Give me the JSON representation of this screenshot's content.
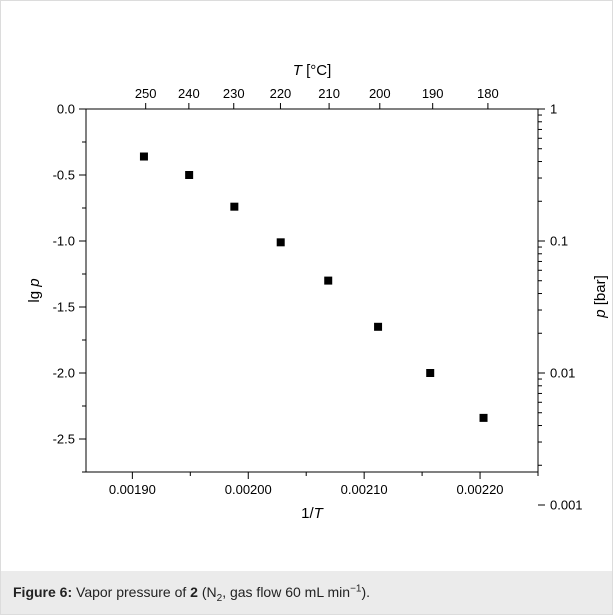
{
  "chart_data": {
    "type": "scatter",
    "xlabel": "1/T",
    "ylabel": "lg p",
    "top_xlabel": "T [°C]",
    "right_ylabel": "p [bar]",
    "xlim": [
      0.00186,
      0.00225
    ],
    "ylim": [
      -2.75,
      0.0
    ],
    "x_ticks": [
      0.0019,
      0.002,
      0.0021,
      0.0022
    ],
    "x_tick_labels": [
      "0.00190",
      "0.00200",
      "0.00210",
      "0.00220"
    ],
    "y_ticks": [
      0.0,
      -0.5,
      -1.0,
      -1.5,
      -2.0,
      -2.5
    ],
    "y_tick_labels": [
      "0.0",
      "-0.5",
      "-1.0",
      "-1.5",
      "-2.0",
      "-2.5"
    ],
    "top_ticks_T": [
      250,
      240,
      230,
      220,
      210,
      200,
      190,
      180
    ],
    "top_tick_labels": [
      "250",
      "240",
      "230",
      "220",
      "210",
      "200",
      "190",
      "180"
    ],
    "right_ticks_p": [
      1,
      0.1,
      0.01,
      0.001
    ],
    "right_tick_labels": [
      "1",
      "0.1",
      "0.01",
      "0.001"
    ],
    "grid": false,
    "marker": "square",
    "marker_color": "#000000",
    "x": [
      0.00191,
      0.001949,
      0.001988,
      0.002028,
      0.002069,
      0.002112,
      0.002157,
      0.002203
    ],
    "y": [
      -0.36,
      -0.5,
      -0.74,
      -1.01,
      -1.3,
      -1.65,
      -2.0,
      -2.34
    ]
  },
  "caption": {
    "label": "Figure 6:",
    "text_before_compound": " Vapor pressure of ",
    "compound": "2",
    "text_open": " (N",
    "sub_2": "2",
    "text_flow": ", gas flow 60 mL min",
    "sup_exp": "−1",
    "text_close": ")."
  }
}
